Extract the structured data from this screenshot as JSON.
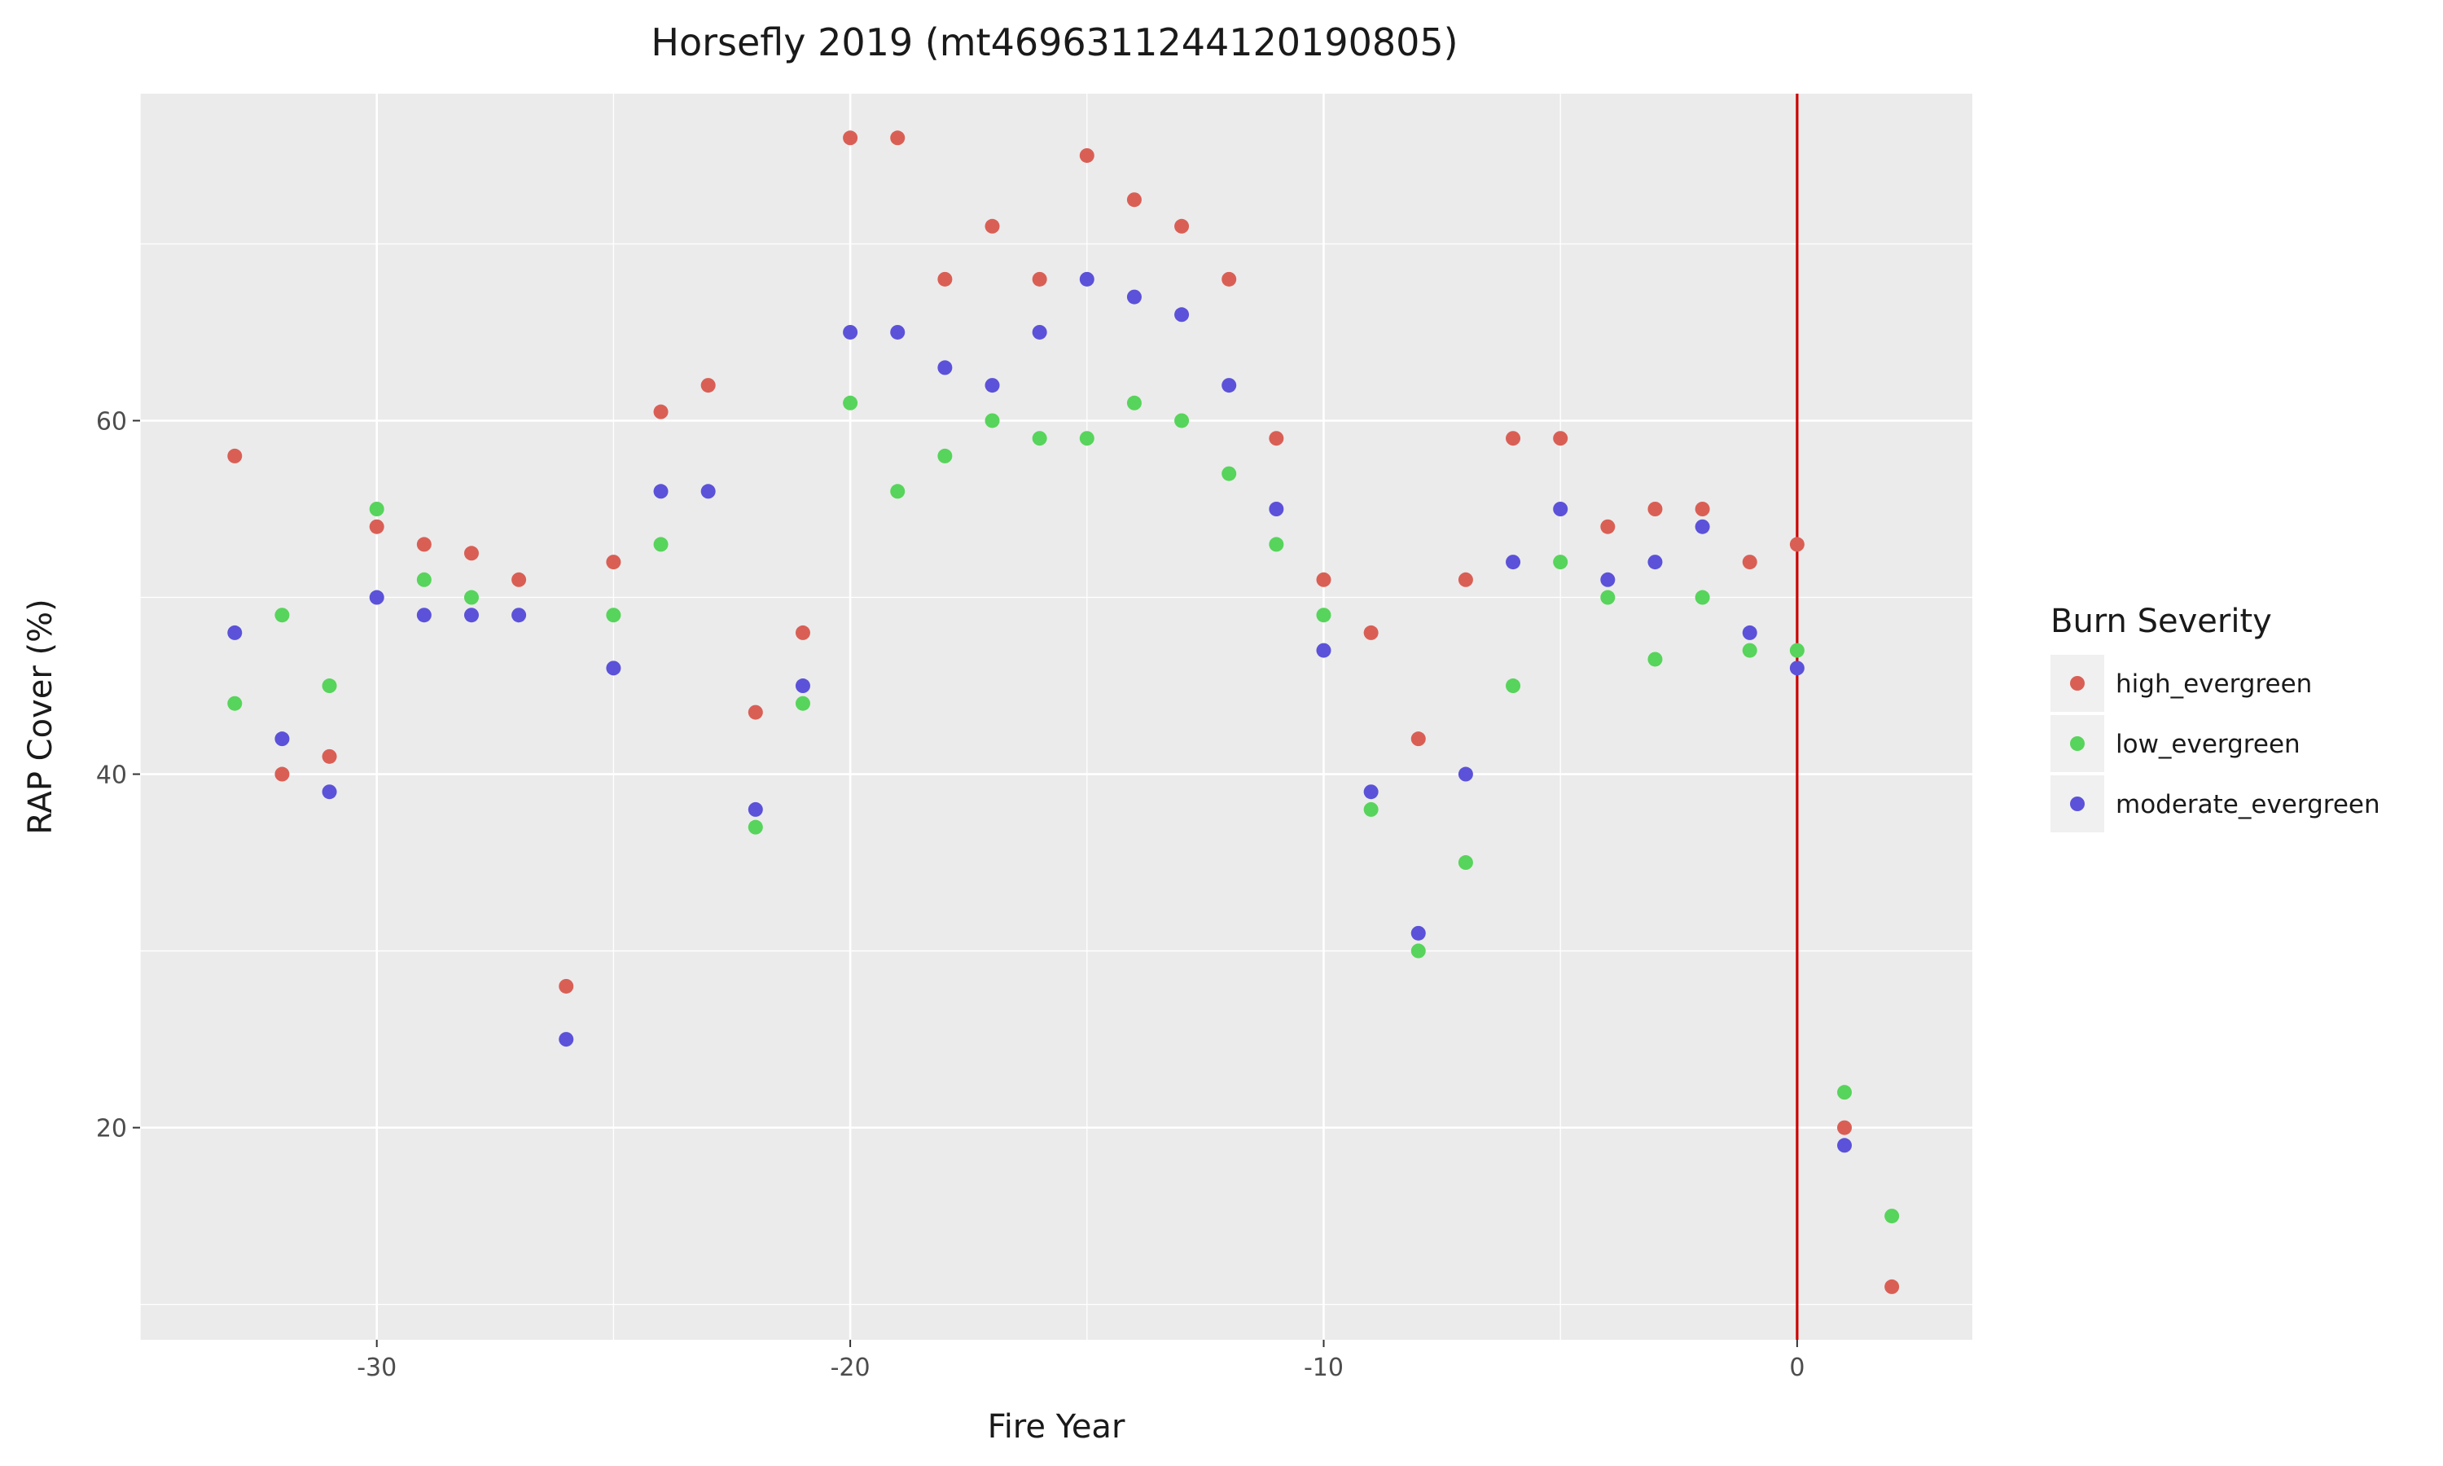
{
  "chart_data": {
    "type": "scatter",
    "title": "Horsefly 2019 (mt4696311244120190805)",
    "xlabel": "Fire Year",
    "ylabel": "RAP Cover (%)",
    "xlim": [
      -35,
      3.7
    ],
    "ylim": [
      8,
      78.5
    ],
    "x_ticks": [
      -30,
      -20,
      -10,
      0
    ],
    "x_tick_labels": [
      "-30",
      "-20",
      "-10",
      "0"
    ],
    "y_ticks": [
      20,
      40,
      60
    ],
    "y_tick_labels": [
      "20",
      "40",
      "60"
    ],
    "grid": true,
    "vertical_reference_line": {
      "x": 0,
      "color": "#cc0000"
    },
    "legend": {
      "title": "Burn Severity",
      "placement": "right"
    },
    "series": [
      {
        "name": "high_evergreen",
        "color": "#d95f55",
        "points": [
          [
            -33,
            58
          ],
          [
            -32,
            40
          ],
          [
            -31,
            41
          ],
          [
            -30,
            54
          ],
          [
            -29,
            53
          ],
          [
            -28,
            52.5
          ],
          [
            -27,
            51
          ],
          [
            -26,
            28
          ],
          [
            -25,
            52
          ],
          [
            -24,
            60.5
          ],
          [
            -23,
            62
          ],
          [
            -22,
            43.5
          ],
          [
            -21,
            48
          ],
          [
            -20,
            76
          ],
          [
            -19,
            76
          ],
          [
            -18,
            68
          ],
          [
            -17,
            71
          ],
          [
            -16,
            68
          ],
          [
            -15,
            75
          ],
          [
            -14,
            72.5
          ],
          [
            -13,
            71
          ],
          [
            -12,
            68
          ],
          [
            -11,
            59
          ],
          [
            -10,
            51
          ],
          [
            -9,
            48
          ],
          [
            -8,
            42
          ],
          [
            -7,
            51
          ],
          [
            -6,
            59
          ],
          [
            -5,
            59
          ],
          [
            -4,
            54
          ],
          [
            -3,
            55
          ],
          [
            -2,
            55
          ],
          [
            -1,
            52
          ],
          [
            0,
            53
          ],
          [
            1,
            20
          ],
          [
            2,
            11
          ]
        ]
      },
      {
        "name": "low_evergreen",
        "color": "#57d45b",
        "points": [
          [
            -33,
            44
          ],
          [
            -32,
            49
          ],
          [
            -31,
            45
          ],
          [
            -30,
            55
          ],
          [
            -29,
            51
          ],
          [
            -28,
            50
          ],
          [
            -25,
            49
          ],
          [
            -24,
            53
          ],
          [
            -22,
            37
          ],
          [
            -21,
            44
          ],
          [
            -20,
            61
          ],
          [
            -19,
            56
          ],
          [
            -18,
            58
          ],
          [
            -17,
            60
          ],
          [
            -16,
            59
          ],
          [
            -15,
            59
          ],
          [
            -14,
            61
          ],
          [
            -13,
            60
          ],
          [
            -12,
            57
          ],
          [
            -11,
            53
          ],
          [
            -10,
            49
          ],
          [
            -9,
            38
          ],
          [
            -8,
            30
          ],
          [
            -7,
            35
          ],
          [
            -6,
            45
          ],
          [
            -5,
            52
          ],
          [
            -4,
            50
          ],
          [
            -3,
            46.5
          ],
          [
            -2,
            50
          ],
          [
            -1,
            47
          ],
          [
            0,
            47
          ],
          [
            1,
            22
          ],
          [
            2,
            15
          ]
        ]
      },
      {
        "name": "moderate_evergreen",
        "color": "#5b52d9",
        "points": [
          [
            -33,
            48
          ],
          [
            -32,
            42
          ],
          [
            -31,
            39
          ],
          [
            -30,
            50
          ],
          [
            -29,
            49
          ],
          [
            -28,
            49
          ],
          [
            -27,
            49
          ],
          [
            -26,
            25
          ],
          [
            -25,
            46
          ],
          [
            -24,
            56
          ],
          [
            -23,
            56
          ],
          [
            -22,
            38
          ],
          [
            -21,
            45
          ],
          [
            -20,
            65
          ],
          [
            -19,
            65
          ],
          [
            -18,
            63
          ],
          [
            -17,
            62
          ],
          [
            -16,
            65
          ],
          [
            -15,
            68
          ],
          [
            -14,
            67
          ],
          [
            -13,
            66
          ],
          [
            -12,
            62
          ],
          [
            -11,
            55
          ],
          [
            -10,
            47
          ],
          [
            -9,
            39
          ],
          [
            -8,
            31
          ],
          [
            -7,
            40
          ],
          [
            -6,
            52
          ],
          [
            -5,
            55
          ],
          [
            -4,
            51
          ],
          [
            -3,
            52
          ],
          [
            -2,
            54
          ],
          [
            -1,
            48
          ],
          [
            0,
            46
          ],
          [
            1,
            19
          ]
        ]
      }
    ]
  }
}
